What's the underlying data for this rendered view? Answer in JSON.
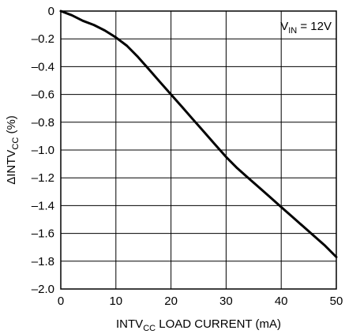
{
  "chart_data": {
    "type": "line",
    "xlabel": "INTV",
    "xlabel_sub": "CC",
    "xlabel_rest": " LOAD CURRENT (mA)",
    "ylabel": "ΔINTV",
    "ylabel_sub": "CC",
    "ylabel_rest": " (%)",
    "annotation_main": "V",
    "annotation_sub": "IN",
    "annotation_rest": " = 12V",
    "annotation_position": "top-right",
    "xlim": [
      0,
      50
    ],
    "ylim": [
      -2.0,
      0
    ],
    "grid": true,
    "xticks": [
      {
        "value": 0,
        "label": "0"
      },
      {
        "value": 10,
        "label": "10"
      },
      {
        "value": 20,
        "label": "20"
      },
      {
        "value": 30,
        "label": "30"
      },
      {
        "value": 40,
        "label": "40"
      },
      {
        "value": 50,
        "label": "50"
      }
    ],
    "yticks": [
      {
        "value": 0,
        "label": "0"
      },
      {
        "value": -0.2,
        "label": "–0.2"
      },
      {
        "value": -0.4,
        "label": "–0.4"
      },
      {
        "value": -0.6,
        "label": "–0.6"
      },
      {
        "value": -0.8,
        "label": "–0.8"
      },
      {
        "value": -1.0,
        "label": "–1.0"
      },
      {
        "value": -1.2,
        "label": "–1.2"
      },
      {
        "value": -1.4,
        "label": "–1.4"
      },
      {
        "value": -1.6,
        "label": "–1.6"
      },
      {
        "value": -1.8,
        "label": "–1.8"
      },
      {
        "value": -2.0,
        "label": "–2.0"
      }
    ],
    "series": [
      {
        "color": "#000000",
        "x": [
          0,
          2,
          4,
          6,
          8,
          10,
          12,
          14,
          16,
          18,
          20,
          22,
          24,
          26,
          28,
          30,
          32,
          34,
          36,
          38,
          40,
          42,
          44,
          46,
          48,
          50
        ],
        "y": [
          0,
          -0.03,
          -0.07,
          -0.1,
          -0.14,
          -0.19,
          -0.25,
          -0.33,
          -0.42,
          -0.51,
          -0.6,
          -0.69,
          -0.78,
          -0.87,
          -0.96,
          -1.05,
          -1.13,
          -1.2,
          -1.27,
          -1.34,
          -1.41,
          -1.48,
          -1.55,
          -1.62,
          -1.69,
          -1.77
        ]
      }
    ]
  }
}
